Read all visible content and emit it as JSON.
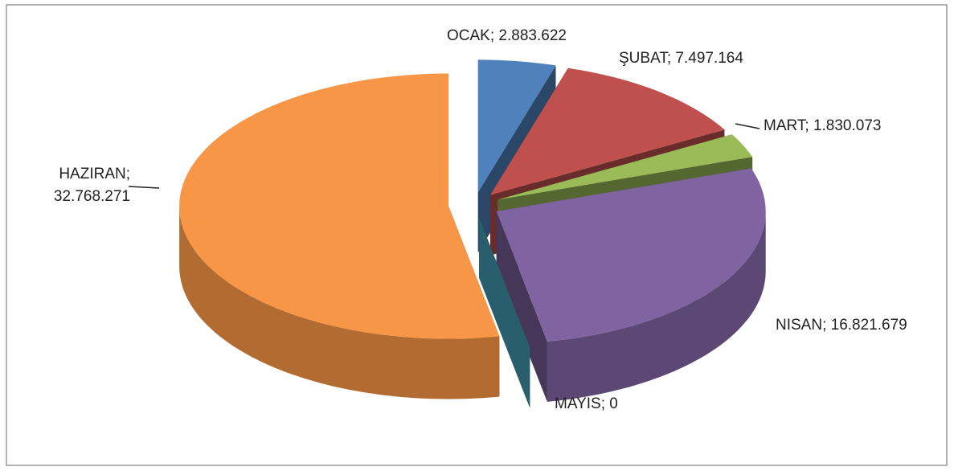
{
  "chart_data": {
    "type": "pie",
    "categories": [
      "OCAK",
      "ŞUBAT",
      "MART",
      "NISAN",
      "MAYIS",
      "HAZIRAN"
    ],
    "values": [
      2883622,
      7497164,
      1830073,
      16821679,
      0,
      32768271
    ],
    "value_labels": [
      "2.883.622",
      "7.497.164",
      "1.830.073",
      "16.821.679",
      "0",
      "32.768.271"
    ],
    "label_separator": ";",
    "colors": [
      "#4f81bd",
      "#c0504d",
      "#9bbb59",
      "#8064a2",
      "#4bacc6",
      "#f79646"
    ]
  }
}
